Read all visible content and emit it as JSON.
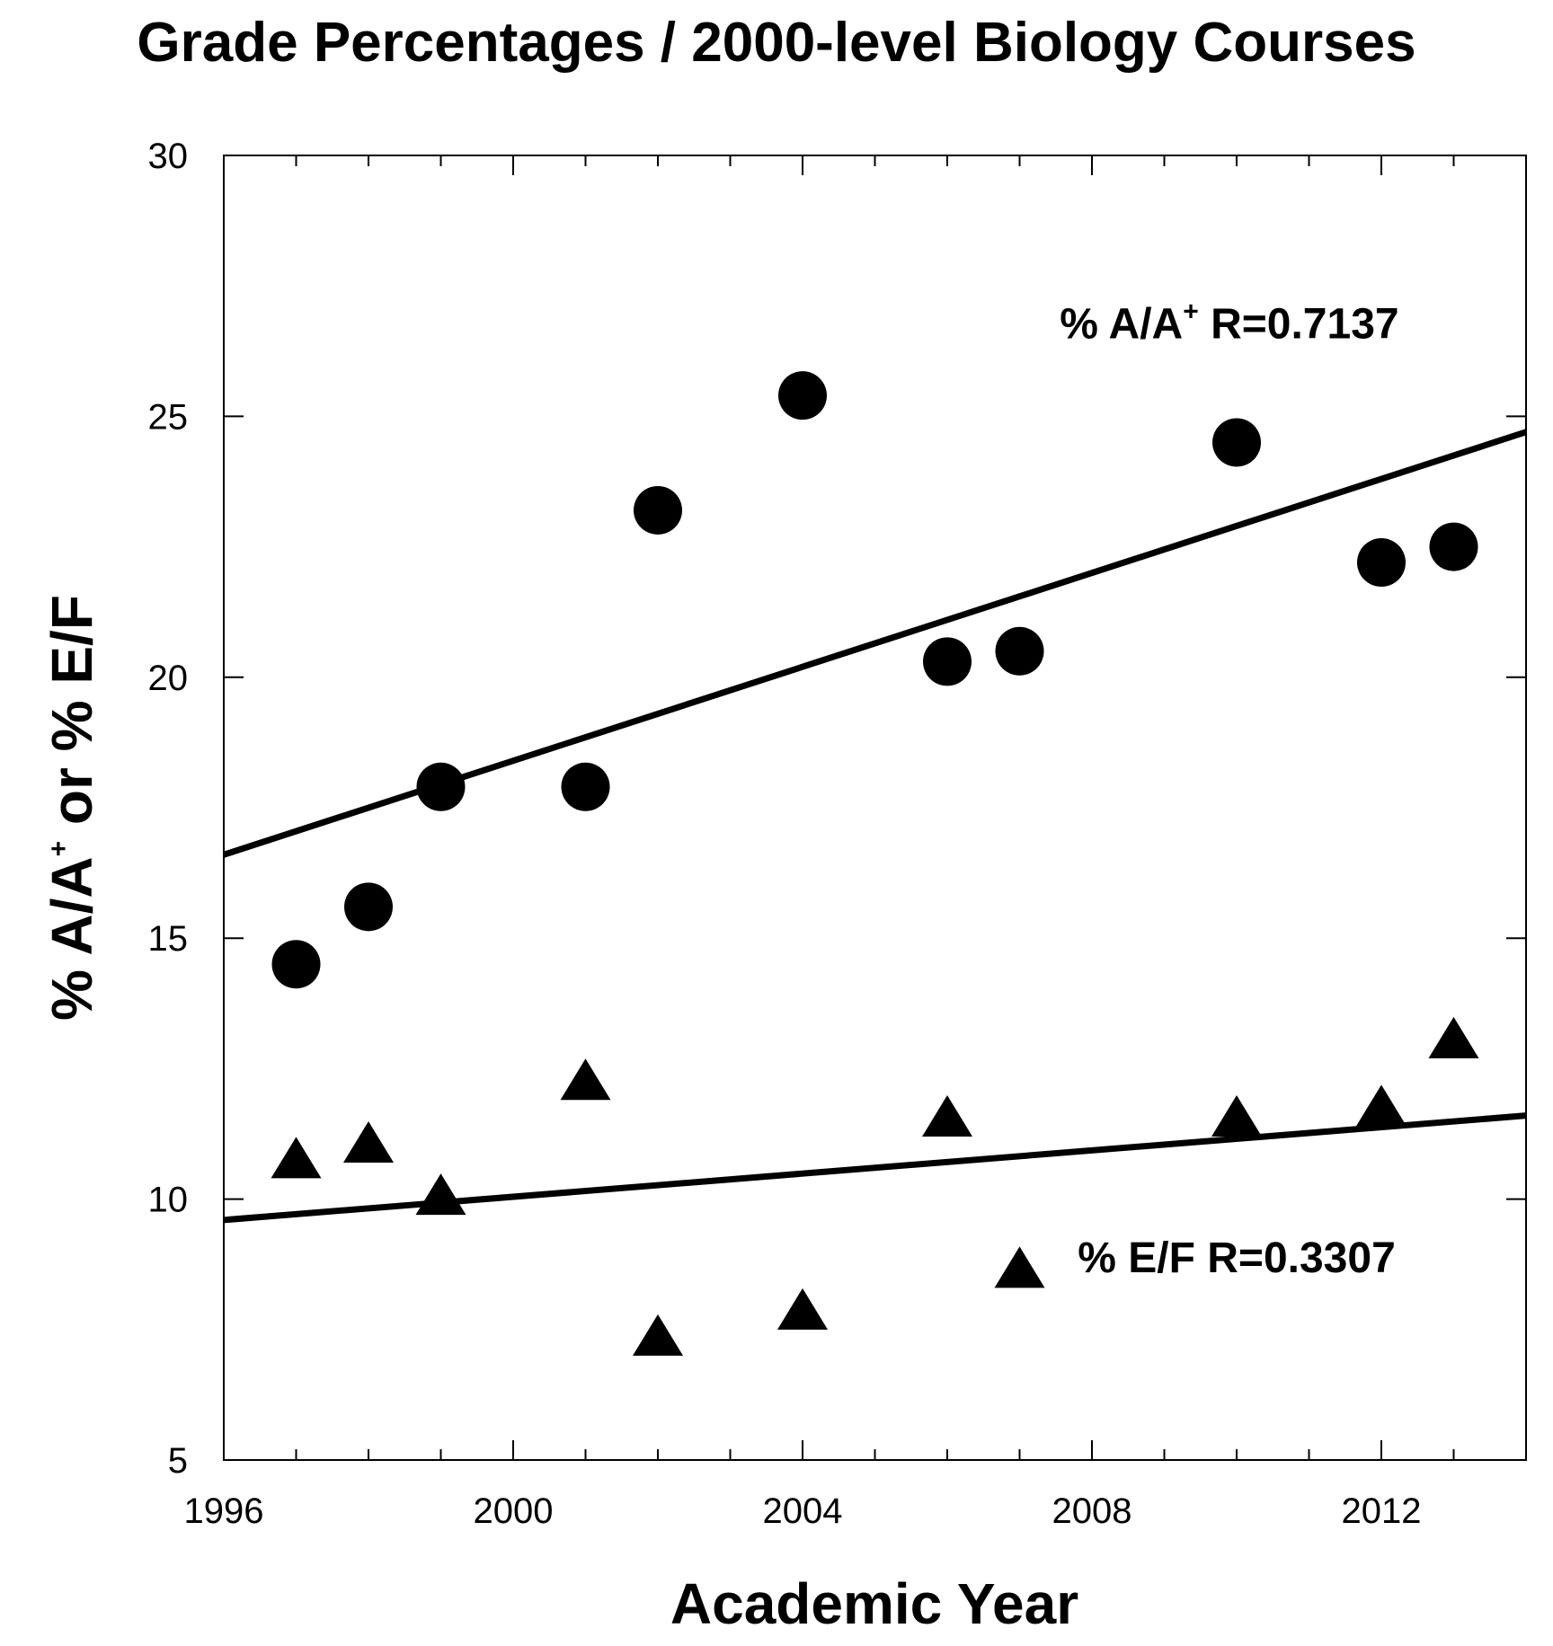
{
  "chart_data": {
    "type": "scatter",
    "title": "Grade Percentages / 2000-level Biology Courses",
    "xlabel": "Academic Year",
    "ylabel": {
      "prefix": "% A/A",
      "sup": "+",
      "suffix": " or % E/F"
    },
    "xlim": [
      1996,
      2014
    ],
    "ylim": [
      5,
      30
    ],
    "x_ticks": [
      1996,
      2000,
      2004,
      2008,
      2012
    ],
    "y_ticks": [
      5,
      10,
      15,
      20,
      25,
      30
    ],
    "grid": false,
    "series": [
      {
        "marker": "circle",
        "x": [
          1997,
          1998,
          1999,
          2001,
          2002,
          2004,
          2006,
          2007,
          2010,
          2012,
          2013
        ],
        "y": [
          14.5,
          15.6,
          17.9,
          17.9,
          23.2,
          25.4,
          20.3,
          20.5,
          24.5,
          22.2,
          22.5
        ],
        "fit": {
          "x": [
            1996,
            2014
          ],
          "y": [
            16.6,
            24.7
          ]
        },
        "annotation": {
          "prefix": "% A/A",
          "sup": "+",
          "suffix": " R=0.7137",
          "x": 2009.9,
          "y": 26.5
        }
      },
      {
        "marker": "triangle",
        "x": [
          1997,
          1998,
          1999,
          2001,
          2002,
          2004,
          2006,
          2007,
          2010,
          2012,
          2013
        ],
        "y": [
          10.7,
          11.0,
          10.0,
          12.2,
          7.3,
          7.8,
          11.5,
          8.6,
          11.5,
          11.7,
          13.0
        ],
        "fit": {
          "x": [
            1996,
            2014
          ],
          "y": [
            9.6,
            11.6
          ]
        },
        "annotation": {
          "prefix": "% E/F",
          "sup": "",
          "suffix": " R=0.3307",
          "x": 2010.0,
          "y": 8.6
        }
      }
    ]
  }
}
